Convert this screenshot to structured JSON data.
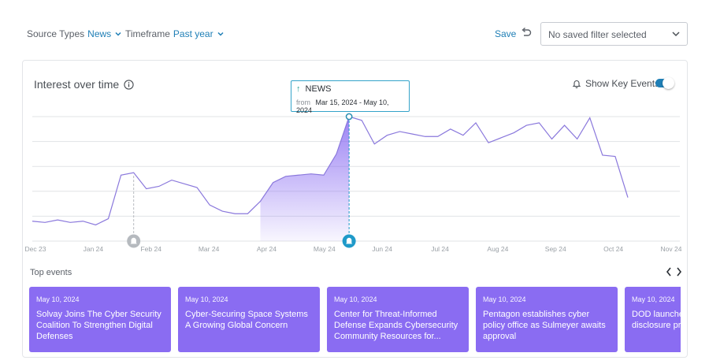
{
  "filters": {
    "source_label": "Source Types",
    "source_value": "News",
    "timeframe_label": "Timeframe",
    "timeframe_value": "Past year"
  },
  "toolbar": {
    "save_label": "Save",
    "saved_filter_placeholder": "No saved filter selected"
  },
  "card": {
    "title": "Interest over time",
    "key_events_label": "Show Key Events",
    "key_events_enabled": true
  },
  "tooltip": {
    "label": "NEWS",
    "from_label": "from",
    "range": "Mar 15, 2024 - May 10, 2024"
  },
  "colors": {
    "accent": "#1f7fb6",
    "line": "#8a78dc",
    "area": "#8a6cf2",
    "event_card": "#8a6cf2",
    "marker_active": "#1f9ac9",
    "marker_inactive": "#b6babf"
  },
  "chart_data": {
    "type": "area",
    "title": "Interest over time",
    "x_ticks": [
      "Dec 23",
      "Jan 24",
      "Feb 24",
      "Mar 24",
      "Apr 24",
      "May 24",
      "Jun 24",
      "Jul 24",
      "Aug 24",
      "Sep 24",
      "Oct 24",
      "Nov 24"
    ],
    "ylim": [
      0,
      100
    ],
    "grid": true,
    "series": [
      {
        "values": [
          16,
          15,
          17,
          15,
          16,
          13,
          18,
          53,
          55,
          42,
          44,
          49,
          46,
          43,
          29,
          24,
          22,
          22,
          32,
          47,
          52,
          53,
          54,
          53,
          70,
          100,
          97,
          78,
          85,
          88,
          86,
          84,
          84,
          90,
          85,
          95,
          79,
          83,
          87,
          93,
          95,
          82,
          93,
          82,
          99,
          69,
          68,
          35
        ]
      }
    ],
    "highlight_range": {
      "start_index": 18,
      "end_index": 25
    },
    "key_events": [
      {
        "index": 8,
        "active": false
      },
      {
        "index": 25,
        "active": true
      }
    ]
  },
  "events": {
    "heading": "Top events",
    "items": [
      {
        "date": "May 10, 2024",
        "title": "Solvay Joins The Cyber Security Coalition To Strengthen Digital Defenses"
      },
      {
        "date": "May 10, 2024",
        "title": "Cyber-Securing Space Systems A Growing Global Concern"
      },
      {
        "date": "May 10, 2024",
        "title": "Center for Threat-Informed Defense Expands Cybersecurity Community Resources for..."
      },
      {
        "date": "May 10, 2024",
        "title": "Pentagon establishes cyber policy office as Sulmeyer awaits approval"
      },
      {
        "date": "May 10, 2024",
        "title": "DOD launches vulnerability disclosure program for"
      }
    ]
  }
}
